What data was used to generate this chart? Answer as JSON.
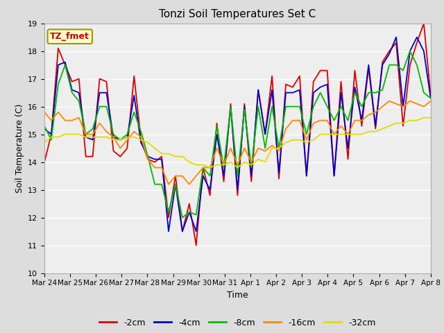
{
  "title": "Tonzi Soil Temperatures Set C",
  "xlabel": "Time",
  "ylabel": "Soil Temperature (C)",
  "ylim": [
    10.0,
    19.0
  ],
  "yticks": [
    10.0,
    11.0,
    12.0,
    13.0,
    14.0,
    15.0,
    16.0,
    17.0,
    18.0,
    19.0
  ],
  "xtick_labels": [
    "Mar 24",
    "Mar 25",
    "Mar 26",
    "Mar 27",
    "Mar 28",
    "Mar 29",
    "Mar 30",
    "Mar 31",
    "Apr 1",
    "Apr 2",
    "Apr 3",
    "Apr 4",
    "Apr 5",
    "Apr 6",
    "Apr 7",
    "Apr 8"
  ],
  "series_colors": [
    "#dd0000",
    "#0000cc",
    "#00bb00",
    "#ff8800",
    "#dddd00"
  ],
  "series_labels": [
    "-2cm",
    "-4cm",
    "-8cm",
    "-16cm",
    "-32cm"
  ],
  "legend_label": "TZ_fmet",
  "legend_box_color": "#ffffcc",
  "legend_box_edge": "#999900",
  "background_color": "#dddddd",
  "plot_bg_color": "#eeeeee",
  "grid_color": "#ffffff",
  "d2cm": [
    14.0,
    15.0,
    18.1,
    17.5,
    16.9,
    17.0,
    14.2,
    14.2,
    17.0,
    16.9,
    14.4,
    14.2,
    14.5,
    17.1,
    14.8,
    14.1,
    14.0,
    14.2,
    12.0,
    13.5,
    11.5,
    12.5,
    11.0,
    13.8,
    12.8,
    15.4,
    13.3,
    16.1,
    12.8,
    16.1,
    13.3,
    16.6,
    15.0,
    17.1,
    13.4,
    16.8,
    16.7,
    17.1,
    13.5,
    16.9,
    17.3,
    17.3,
    13.5,
    16.9,
    14.1,
    17.3,
    15.3,
    17.4,
    15.2,
    17.6,
    18.0,
    18.3,
    15.3,
    17.5,
    18.3,
    19.0,
    16.4
  ],
  "d4cm": [
    15.2,
    15.0,
    17.5,
    17.6,
    16.6,
    16.5,
    14.9,
    14.8,
    16.5,
    16.5,
    14.9,
    14.8,
    14.9,
    16.4,
    14.7,
    14.2,
    14.1,
    14.1,
    11.5,
    13.2,
    11.5,
    12.2,
    11.5,
    13.5,
    13.0,
    15.0,
    13.5,
    16.0,
    13.0,
    16.0,
    13.5,
    16.6,
    15.0,
    16.6,
    13.6,
    16.5,
    16.5,
    16.6,
    13.5,
    16.5,
    16.7,
    16.8,
    13.5,
    16.5,
    14.5,
    16.7,
    15.5,
    17.5,
    15.3,
    17.5,
    17.9,
    18.5,
    16.0,
    18.0,
    18.5,
    18.0,
    16.3
  ],
  "d8cm": [
    15.3,
    14.8,
    16.8,
    17.5,
    16.5,
    16.2,
    15.0,
    15.2,
    16.0,
    16.0,
    15.0,
    14.8,
    15.0,
    15.8,
    15.1,
    14.2,
    13.2,
    13.2,
    12.2,
    13.2,
    12.0,
    12.2,
    12.1,
    13.8,
    13.5,
    15.3,
    13.8,
    16.0,
    13.5,
    15.9,
    13.8,
    16.0,
    14.5,
    16.0,
    14.5,
    16.0,
    16.0,
    16.0,
    15.0,
    16.0,
    16.5,
    16.0,
    15.5,
    16.0,
    15.5,
    16.5,
    16.0,
    16.5,
    16.5,
    16.6,
    17.5,
    17.5,
    17.3,
    18.0,
    17.5,
    16.5,
    16.3
  ],
  "d16cm": [
    15.8,
    15.5,
    15.8,
    15.5,
    15.5,
    15.6,
    15.0,
    15.0,
    15.4,
    15.1,
    14.9,
    14.5,
    14.8,
    15.1,
    14.9,
    14.1,
    13.8,
    13.8,
    13.2,
    13.5,
    13.5,
    13.2,
    13.5,
    13.8,
    13.8,
    14.5,
    13.9,
    14.5,
    13.9,
    14.5,
    14.0,
    14.5,
    14.4,
    14.6,
    14.4,
    15.2,
    15.5,
    15.5,
    14.8,
    15.4,
    15.5,
    15.5,
    15.0,
    15.3,
    15.0,
    15.5,
    15.5,
    15.7,
    15.8,
    16.0,
    16.2,
    16.1,
    16.0,
    16.2,
    16.1,
    16.0,
    16.2
  ],
  "d32cm": [
    14.7,
    14.9,
    14.9,
    15.0,
    15.0,
    15.0,
    14.9,
    14.9,
    14.9,
    14.9,
    14.8,
    14.8,
    14.9,
    14.9,
    14.8,
    14.7,
    14.5,
    14.3,
    14.3,
    14.2,
    14.2,
    14.0,
    13.9,
    13.9,
    13.8,
    13.9,
    13.9,
    14.0,
    13.8,
    14.0,
    13.9,
    14.1,
    14.0,
    14.5,
    14.5,
    14.7,
    14.8,
    14.8,
    14.7,
    14.8,
    15.0,
    15.0,
    15.0,
    15.0,
    15.0,
    15.0,
    15.0,
    15.1,
    15.1,
    15.2,
    15.3,
    15.4,
    15.4,
    15.5,
    15.5,
    15.6,
    15.6
  ]
}
